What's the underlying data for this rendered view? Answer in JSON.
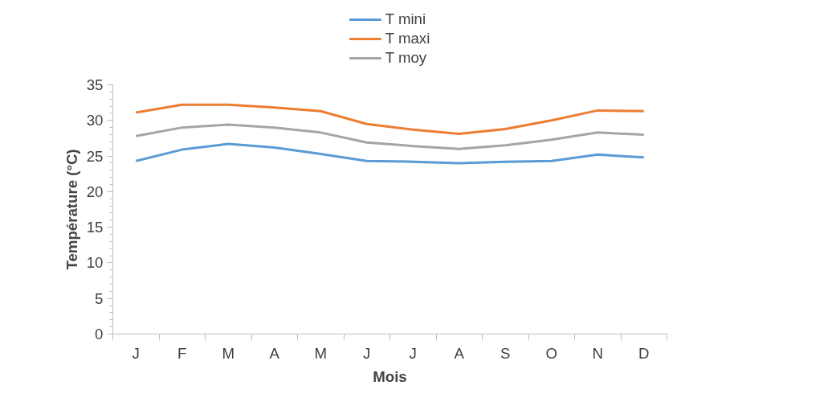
{
  "chart_data": {
    "type": "line",
    "xlabel": "Mois",
    "ylabel": "Température (°C)",
    "categories": [
      "J",
      "F",
      "M",
      "A",
      "M",
      "J",
      "J",
      "A",
      "S",
      "O",
      "N",
      "D"
    ],
    "series": [
      {
        "name": "T mini",
        "color": "#5b9bd5",
        "values": [
          24.3,
          25.9,
          26.7,
          26.2,
          25.3,
          24.3,
          24.2,
          24.0,
          24.2,
          24.3,
          25.2,
          24.8
        ]
      },
      {
        "name": "T maxi",
        "color": "#ed7d31",
        "values": [
          31.1,
          32.2,
          32.2,
          31.8,
          31.3,
          29.5,
          28.7,
          28.1,
          28.8,
          30.0,
          31.4,
          31.3
        ]
      },
      {
        "name": "T moy",
        "color": "#a5a5a5",
        "values": [
          27.8,
          29.0,
          29.4,
          29.0,
          28.3,
          26.9,
          26.4,
          26.0,
          26.5,
          27.3,
          28.3,
          28.0
        ]
      }
    ],
    "ylim": [
      0,
      35
    ],
    "yticks": [
      0,
      5,
      10,
      15,
      20,
      25,
      30,
      35
    ],
    "grid": false,
    "legend": "top",
    "marker": "none",
    "line_style": "solid"
  }
}
